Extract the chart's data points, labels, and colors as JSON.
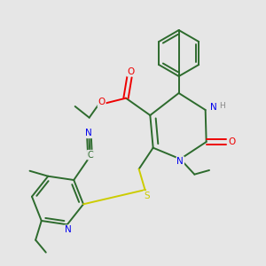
{
  "background_color": "#e6e6e6",
  "bond_color": "#2d6b2d",
  "atom_colors": {
    "N": "#0000ee",
    "O": "#ee0000",
    "S": "#cccc00",
    "C": "#2d6b2d",
    "H": "#888888"
  },
  "figsize": [
    3.0,
    3.0
  ],
  "dpi": 100,
  "lw": 1.4
}
